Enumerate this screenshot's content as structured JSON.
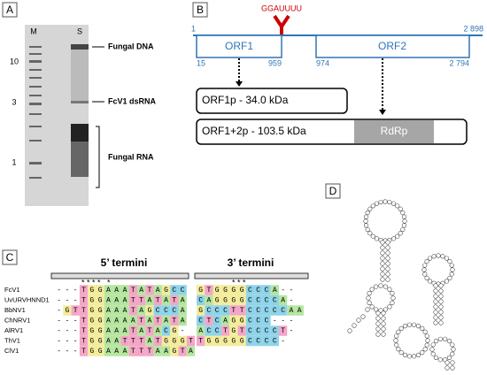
{
  "panel_a": {
    "label": "A",
    "lanes": [
      "M",
      "S"
    ],
    "sizes": [
      "10",
      "3",
      "1"
    ],
    "annotations": [
      "Fungal DNA",
      "FcV1 dsRNA",
      "Fungal RNA"
    ]
  },
  "panel_b": {
    "label": "B",
    "motif": "GGAUUUU",
    "genome_start": "1",
    "genome_end": "2 898",
    "orfs": [
      {
        "name": "ORF1",
        "start": "15",
        "end": "959"
      },
      {
        "name": "ORF2",
        "start": "974",
        "end": "2 794"
      }
    ],
    "proteins": [
      "ORF1p - 34.0 kDa",
      "ORF1+2p - 103.5 kDa"
    ],
    "domain": "RdRp"
  },
  "panel_c": {
    "label": "C",
    "five_title": "5’ termini",
    "three_title": "3’ termini",
    "five_stars": "* * * *   *",
    "three_stars": "* * *",
    "rows": [
      {
        "name": "FcV1",
        "five": "---TGGAAATATAGCC",
        "three": "GTGGGGCCCA--"
      },
      {
        "name": "UvURVHNND1",
        "five": "---TGGAAATTATATA",
        "three": "CAGGGGCCCCA-"
      },
      {
        "name": "BbNV1",
        "five": "-GTTGGAAATAGCCCA",
        "three": "GCCCTTCCCCCAA"
      },
      {
        "name": "ChNRV1",
        "five": "---TGGAAAATATATA",
        "three": "CTCAGGCCC---"
      },
      {
        "name": "AlRV1",
        "five": "---TGGAAATATACG-",
        "three": "ACCTGTCCCCT-"
      },
      {
        "name": "ThV1",
        "five": "---TGGAATTTATGGGT",
        "three": "TGGGGGCCCC-"
      },
      {
        "name": "ClV1",
        "five": "---TGGAAATTTAAGTA",
        "three": ""
      }
    ]
  },
  "panel_d": {
    "label": "D"
  }
}
